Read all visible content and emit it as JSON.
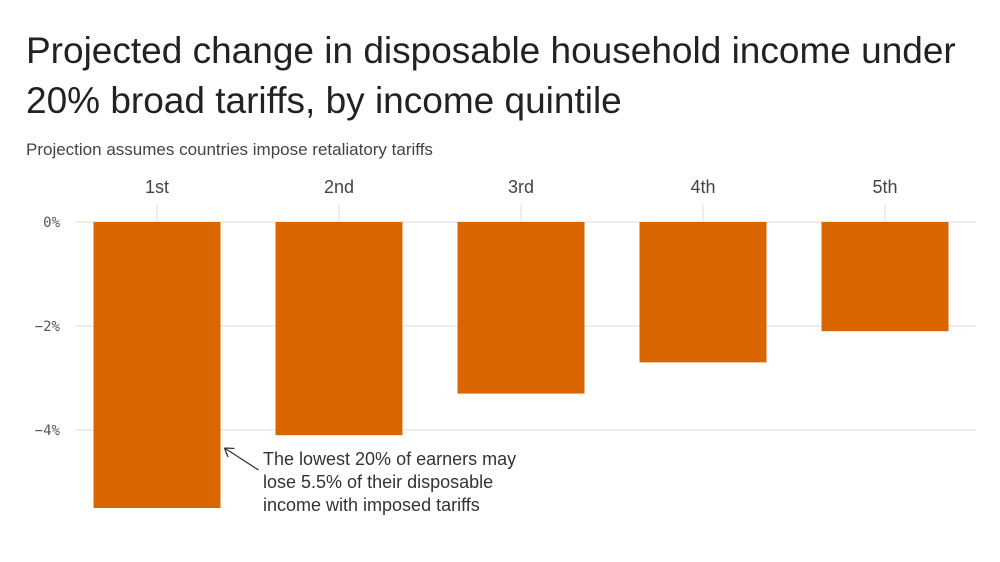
{
  "chart_data": {
    "type": "bar",
    "title": "Projected change in disposable household income under 20% broad tariffs, by income quintile",
    "subtitle": "Projection assumes countries impose retaliatory tariffs",
    "categories": [
      "1st",
      "2nd",
      "3rd",
      "4th",
      "5th"
    ],
    "series": [
      {
        "values": [
          -5.5,
          -4.1,
          -3.3,
          -2.7,
          -2.1
        ]
      }
    ],
    "xlabel": "",
    "ylabel": "",
    "ylim": [
      -5.8,
      0
    ],
    "yticks": [
      0,
      -2,
      -4
    ],
    "ytick_labels": [
      "0%",
      "−2%",
      "−4%"
    ],
    "x_axis_position": "top",
    "grid": true,
    "bar_color": "#d96600",
    "grid_color": "#dddddd",
    "annotation": {
      "target_category": "1st",
      "lines": [
        "The lowest 20% of earners may",
        "lose 5.5% of their disposable",
        "income with imposed tariffs"
      ]
    }
  }
}
